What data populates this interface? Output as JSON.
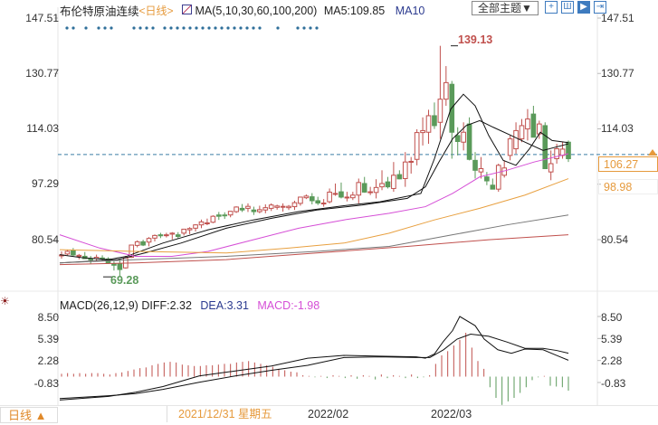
{
  "header": {
    "instrument": "布伦特原油连续",
    "period_tag": "<日线>",
    "ma_label": "MA(5,10,30,60,100,200)",
    "ma5": "MA5:109.85",
    "ma10": "MA10",
    "theme_button": "全部主题▼",
    "toolbar_icons": [
      "crosshair-icon",
      "range-icon",
      "play-icon",
      "next-icon"
    ]
  },
  "price_axis": {
    "ticks": [
      "147.51",
      "130.77",
      "114.03",
      "97.29",
      "80.54"
    ],
    "tick_values": [
      147.51,
      130.77,
      114.03,
      97.29,
      80.54
    ],
    "current_price": "106.27",
    "ma_price": "98.98",
    "high_label": "139.13",
    "low_label": "69.28"
  },
  "macd": {
    "label": "MACD(26,12,9)",
    "diff": "DIFF:2.32",
    "dea": "DEA:3.31",
    "macd": "MACD:-1.98",
    "ticks": [
      "8.50",
      "5.39",
      "2.28",
      "-0.83"
    ],
    "tick_values": [
      8.5,
      5.39,
      2.28,
      -0.83
    ]
  },
  "footer": {
    "period_button": "日线 ▲",
    "cursor_date": "2021/12/31 星期五",
    "x_labels": [
      "2022/02",
      "2022/03"
    ]
  },
  "colors": {
    "up": "#c0504d",
    "down": "#5a9a5a",
    "ma5": "#111111",
    "ma10": "#111111",
    "ma30": "#d54ed6",
    "ma60": "#e8a040",
    "ma100": "#777777",
    "ma200": "#c0504d",
    "accent": "#e69a3c"
  },
  "chart_data": {
    "type": "candlestick",
    "title": "布伦特原油连续 日线",
    "xlabel": "",
    "ylabel": "",
    "x_tick_labels": [
      "2022/02",
      "2022/03"
    ],
    "ylim": [
      66,
      150
    ],
    "candles": [
      [
        75.8,
        77.0,
        74.8,
        75.9
      ],
      [
        76.2,
        77.5,
        75.8,
        77.0
      ],
      [
        77.2,
        78.0,
        75.5,
        75.9
      ],
      [
        75.5,
        76.2,
        74.6,
        75.8
      ],
      [
        75.5,
        76.8,
        74.8,
        74.8
      ],
      [
        74.8,
        75.6,
        73.2,
        74.4
      ],
      [
        74.8,
        76.0,
        74.2,
        75.2
      ],
      [
        75.0,
        75.8,
        74.2,
        74.7
      ],
      [
        74.7,
        75.2,
        73.2,
        73.5
      ],
      [
        73.2,
        74.0,
        71.2,
        72.8
      ],
      [
        73.2,
        74.8,
        69.3,
        71.5
      ],
      [
        72.0,
        75.6,
        71.8,
        75.0
      ],
      [
        75.2,
        78.9,
        75.0,
        78.9
      ],
      [
        78.8,
        80.3,
        78.2,
        79.9
      ],
      [
        79.9,
        80.5,
        78.6,
        78.9
      ],
      [
        79.8,
        81.3,
        78.5,
        80.9
      ],
      [
        81.0,
        82.1,
        80.0,
        81.8
      ],
      [
        82.0,
        82.6,
        81.0,
        81.7
      ],
      [
        81.8,
        82.6,
        81.2,
        82.0
      ],
      [
        82.2,
        82.8,
        80.6,
        82.5
      ],
      [
        82.0,
        82.8,
        80.8,
        81.5
      ],
      [
        82.5,
        83.7,
        81.8,
        83.7
      ],
      [
        83.5,
        84.3,
        82.2,
        83.9
      ],
      [
        84.0,
        85.2,
        83.0,
        85.0
      ],
      [
        85.0,
        86.6,
        84.0,
        85.9
      ],
      [
        85.6,
        86.9,
        84.9,
        85.6
      ],
      [
        85.8,
        87.9,
        85.5,
        87.6
      ],
      [
        88.0,
        88.9,
        86.5,
        87.6
      ],
      [
        88.0,
        88.8,
        86.8,
        87.8
      ],
      [
        88.0,
        89.2,
        87.3,
        89.1
      ],
      [
        89.0,
        90.6,
        88.6,
        90.4
      ],
      [
        90.0,
        91.3,
        88.9,
        89.5
      ],
      [
        90.0,
        91.5,
        88.9,
        90.6
      ],
      [
        89.5,
        90.5,
        88.0,
        89.0
      ],
      [
        89.0,
        90.8,
        88.5,
        89.6
      ],
      [
        89.5,
        91.2,
        88.5,
        90.2
      ],
      [
        90.0,
        91.5,
        89.2,
        91.0
      ],
      [
        90.3,
        91.1,
        89.6,
        90.7
      ],
      [
        90.4,
        91.5,
        89.0,
        90.6
      ],
      [
        90.2,
        91.0,
        89.5,
        90.6
      ],
      [
        90.5,
        92.3,
        89.5,
        91.7
      ],
      [
        91.5,
        93.5,
        90.8,
        93.4
      ],
      [
        93.2,
        94.2,
        92.8,
        93.7
      ],
      [
        93.5,
        94.6,
        91.2,
        92.3
      ],
      [
        92.3,
        93.5,
        91.0,
        91.6
      ],
      [
        91.5,
        92.8,
        90.5,
        91.6
      ],
      [
        92.0,
        96.0,
        91.5,
        94.9
      ],
      [
        94.5,
        97.5,
        93.8,
        94.5
      ],
      [
        95.0,
        97.8,
        93.0,
        93.4
      ],
      [
        93.4,
        95.0,
        92.1,
        93.4
      ],
      [
        93.2,
        95.0,
        92.5,
        94.0
      ],
      [
        94.0,
        99.0,
        91.5,
        97.8
      ],
      [
        97.5,
        99.5,
        94.7,
        94.9
      ],
      [
        95.0,
        96.5,
        94.0,
        95.0
      ],
      [
        94.8,
        98.8,
        93.0,
        96.3
      ],
      [
        96.5,
        101.5,
        95.5,
        97.5
      ],
      [
        98.0,
        99.5,
        96.0,
        96.5
      ],
      [
        96.0,
        104.0,
        95.0,
        100.0
      ],
      [
        100.2,
        101.5,
        98.8,
        98.9
      ],
      [
        99.0,
        107.0,
        96.5,
        104.0
      ],
      [
        104.0,
        105.5,
        100.5,
        104.2
      ],
      [
        104.8,
        113.9,
        103.0,
        112.9
      ],
      [
        112.9,
        117.5,
        109.0,
        113.5
      ],
      [
        113.0,
        119.8,
        109.5,
        118.0
      ],
      [
        118.0,
        122.0,
        114.0,
        115.0
      ],
      [
        116.0,
        139.13,
        111.0,
        123.0
      ],
      [
        123.0,
        133.0,
        121.0,
        128.0
      ],
      [
        127.5,
        128.5,
        105.0,
        113.0
      ],
      [
        112.0,
        114.5,
        106.0,
        110.2
      ],
      [
        110.0,
        116.0,
        107.5,
        113.0
      ],
      [
        115.5,
        117.5,
        104.5,
        104.8
      ],
      [
        104.5,
        107.0,
        99.0,
        101.5
      ],
      [
        101.0,
        105.5,
        99.0,
        102.0
      ],
      [
        99.5,
        101.0,
        97.0,
        98.3
      ],
      [
        97.0,
        99.0,
        95.8,
        95.8
      ],
      [
        95.8,
        103.5,
        95.0,
        103.0
      ],
      [
        100.0,
        104.5,
        99.3,
        102.2
      ],
      [
        106.0,
        112.0,
        104.5,
        111.0
      ],
      [
        108.0,
        116.0,
        106.5,
        113.5
      ],
      [
        111.0,
        117.0,
        110.0,
        115.0
      ],
      [
        114.0,
        120.0,
        110.5,
        117.0
      ],
      [
        118.5,
        121.0,
        111.5,
        111.5
      ],
      [
        112.5,
        116.5,
        111.0,
        115.5
      ],
      [
        115.0,
        116.0,
        102.0,
        102.0
      ],
      [
        101.0,
        107.5,
        98.5,
        103.5
      ],
      [
        105.0,
        109.5,
        103.5,
        108.0
      ],
      [
        106.0,
        110.0,
        105.0,
        107.9
      ],
      [
        110.0,
        110.5,
        104.0,
        105.0
      ]
    ],
    "ma_lines": {
      "MA5": [
        [
          66,
          76.0
        ],
        [
          90,
          75.1
        ],
        [
          120,
          74.5
        ],
        [
          140,
          75.5
        ],
        [
          180,
          79.5
        ],
        [
          230,
          83.5
        ],
        [
          280,
          86.5
        ],
        [
          330,
          89.0
        ],
        [
          380,
          90.8
        ],
        [
          420,
          92.0
        ],
        [
          465,
          94.5
        ],
        [
          480,
          105.0
        ],
        [
          498,
          120.0
        ],
        [
          512,
          124.5
        ],
        [
          525,
          121.0
        ],
        [
          540,
          112.0
        ],
        [
          556,
          104.5
        ],
        [
          570,
          103.0
        ],
        [
          585,
          108.0
        ],
        [
          597,
          113.0
        ],
        [
          610,
          110.5
        ],
        [
          628,
          109.85
        ]
      ],
      "MA10": [
        [
          66,
          73.5
        ],
        [
          100,
          74.0
        ],
        [
          130,
          74.5
        ],
        [
          160,
          76.5
        ],
        [
          200,
          79.5
        ],
        [
          250,
          84.0
        ],
        [
          300,
          87.0
        ],
        [
          350,
          89.5
        ],
        [
          400,
          91.0
        ],
        [
          450,
          93.0
        ],
        [
          470,
          96.5
        ],
        [
          485,
          104.0
        ],
        [
          500,
          111.0
        ],
        [
          515,
          115.0
        ],
        [
          530,
          116.5
        ],
        [
          545,
          114.5
        ],
        [
          565,
          112.0
        ],
        [
          580,
          110.0
        ],
        [
          600,
          107.5
        ],
        [
          628,
          109.5
        ]
      ],
      "MA30": [
        [
          66,
          82.0
        ],
        [
          110,
          78.0
        ],
        [
          150,
          75.5
        ],
        [
          190,
          75.5
        ],
        [
          230,
          77.0
        ],
        [
          280,
          80.5
        ],
        [
          330,
          84.0
        ],
        [
          380,
          86.5
        ],
        [
          430,
          88.5
        ],
        [
          470,
          90.5
        ],
        [
          500,
          94.5
        ],
        [
          530,
          99.5
        ],
        [
          560,
          101.5
        ],
        [
          590,
          104.0
        ],
        [
          628,
          106.5
        ]
      ],
      "MA60": [
        [
          66,
          77.5
        ],
        [
          150,
          77.0
        ],
        [
          250,
          76.5
        ],
        [
          320,
          78.0
        ],
        [
          380,
          79.5
        ],
        [
          430,
          82.5
        ],
        [
          480,
          86.5
        ],
        [
          530,
          90.0
        ],
        [
          580,
          94.0
        ],
        [
          628,
          98.98
        ]
      ],
      "MA100": [
        [
          66,
          73.5
        ],
        [
          150,
          74.5
        ],
        [
          250,
          75.5
        ],
        [
          350,
          77.0
        ],
        [
          430,
          78.5
        ],
        [
          500,
          82.0
        ],
        [
          560,
          85.0
        ],
        [
          628,
          88.0
        ]
      ],
      "MA200": [
        [
          66,
          73.0
        ],
        [
          150,
          73.5
        ],
        [
          250,
          74.5
        ],
        [
          350,
          76.5
        ],
        [
          450,
          78.5
        ],
        [
          540,
          80.5
        ],
        [
          628,
          82.0
        ]
      ]
    },
    "macd_series": {
      "DIFF": [
        [
          66,
          -3.3
        ],
        [
          120,
          -2.8
        ],
        [
          150,
          -2.2
        ],
        [
          180,
          -1.4
        ],
        [
          220,
          0.1
        ],
        [
          260,
          0.8
        ],
        [
          300,
          1.5
        ],
        [
          340,
          2.6
        ],
        [
          380,
          3.0
        ],
        [
          420,
          2.9
        ],
        [
          460,
          2.8
        ],
        [
          470,
          2.6
        ],
        [
          480,
          3.2
        ],
        [
          490,
          5.0
        ],
        [
          500,
          6.5
        ],
        [
          508,
          8.5
        ],
        [
          525,
          7.2
        ],
        [
          535,
          5.3
        ],
        [
          550,
          3.8
        ],
        [
          565,
          3.3
        ],
        [
          580,
          3.9
        ],
        [
          600,
          3.8
        ],
        [
          615,
          3.0
        ],
        [
          628,
          2.32
        ]
      ],
      "DEA": [
        [
          66,
          -3.1
        ],
        [
          120,
          -2.7
        ],
        [
          150,
          -2.4
        ],
        [
          180,
          -1.8
        ],
        [
          220,
          -0.8
        ],
        [
          260,
          0.1
        ],
        [
          300,
          0.9
        ],
        [
          340,
          1.6
        ],
        [
          380,
          2.7
        ],
        [
          420,
          2.8
        ],
        [
          460,
          2.7
        ],
        [
          475,
          2.7
        ],
        [
          490,
          3.8
        ],
        [
          505,
          5.3
        ],
        [
          520,
          6.0
        ],
        [
          540,
          5.7
        ],
        [
          560,
          4.9
        ],
        [
          580,
          4.0
        ],
        [
          600,
          4.0
        ],
        [
          615,
          3.7
        ],
        [
          628,
          3.31
        ]
      ],
      "MACD_hist": [
        0.4,
        0.5,
        0.4,
        0.5,
        0.4,
        0.5,
        0.5,
        0.4,
        0.3,
        0.5,
        0.6,
        0.8,
        1.0,
        1.2,
        1.3,
        1.6,
        1.8,
        2.0,
        2.1,
        2.0,
        1.7,
        1.6,
        1.5,
        1.5,
        1.6,
        1.6,
        1.7,
        1.8,
        1.8,
        2.0,
        2.1,
        2.2,
        2.0,
        1.8,
        1.6,
        1.4,
        1.1,
        0.9,
        0.7,
        0.6,
        0.2,
        0.1,
        -0.1,
        0.1,
        -0.2,
        0.2,
        0.1,
        -0.2,
        0.2,
        -0.3,
        0.2,
        0.1,
        -0.4,
        0.3,
        -0.2,
        0.2,
        0.1,
        -0.2,
        0.3,
        -0.2,
        -0.1,
        0.2,
        1.8,
        3.0,
        3.6,
        4.4,
        5.2,
        6.2,
        4.1,
        2.2,
        1.1,
        -1.5,
        -3.0,
        -4.0,
        -3.5,
        -3.0,
        -2.3,
        -1.5,
        -0.5,
        -0.1,
        0.1,
        -1.3,
        -1.4,
        -1.5,
        -1.98
      ]
    }
  }
}
